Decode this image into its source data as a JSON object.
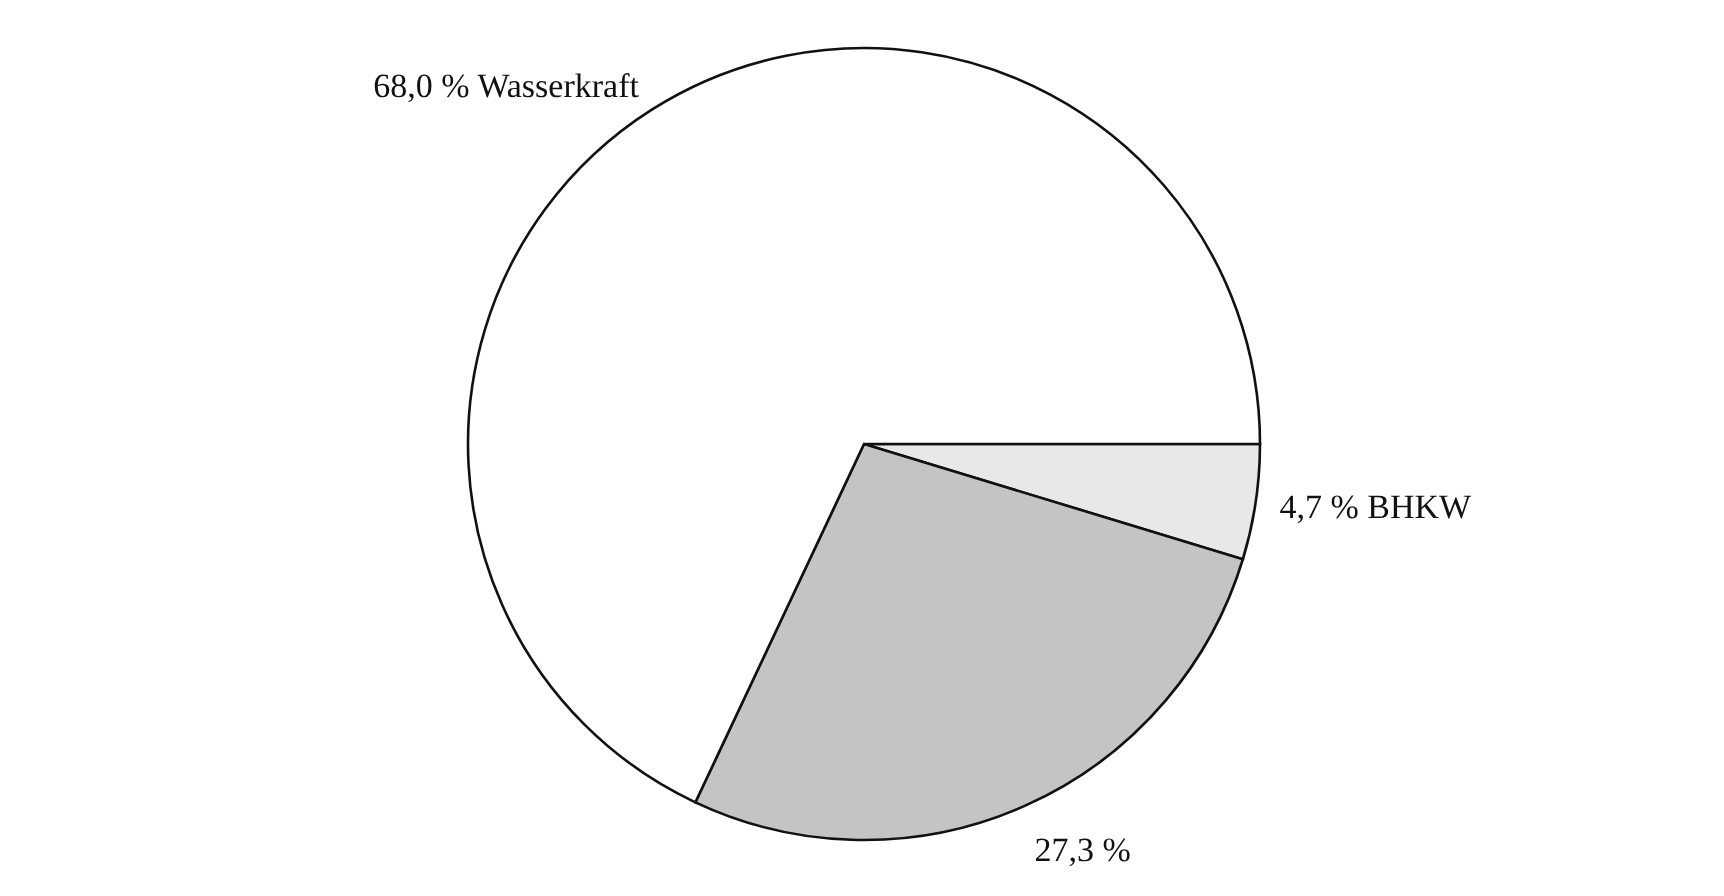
{
  "chart_data": {
    "type": "pie",
    "categories": [
      "BHKW",
      null,
      "Wasserkraft"
    ],
    "values": [
      4.7,
      27.3,
      68.0
    ],
    "value_labels": [
      "4,7 %",
      "27,3 %",
      "68,0 %"
    ],
    "colors": [
      "#e8e8e8",
      "#c4c4c4",
      "#ffffff"
    ]
  }
}
